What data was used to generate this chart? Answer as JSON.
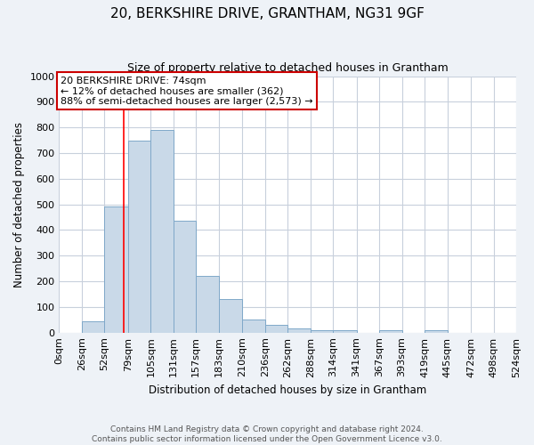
{
  "title": "20, BERKSHIRE DRIVE, GRANTHAM, NG31 9GF",
  "subtitle": "Size of property relative to detached houses in Grantham",
  "xlabel": "Distribution of detached houses by size in Grantham",
  "ylabel": "Number of detached properties",
  "bin_labels": [
    "0sqm",
    "26sqm",
    "52sqm",
    "79sqm",
    "105sqm",
    "131sqm",
    "157sqm",
    "183sqm",
    "210sqm",
    "236sqm",
    "262sqm",
    "288sqm",
    "314sqm",
    "341sqm",
    "367sqm",
    "393sqm",
    "419sqm",
    "445sqm",
    "472sqm",
    "498sqm",
    "524sqm"
  ],
  "bin_edges": [
    0,
    26,
    52,
    79,
    105,
    131,
    157,
    183,
    210,
    236,
    262,
    288,
    314,
    341,
    367,
    393,
    419,
    445,
    472,
    498,
    524
  ],
  "bar_heights": [
    0,
    45,
    490,
    750,
    790,
    435,
    220,
    130,
    50,
    30,
    15,
    10,
    10,
    0,
    10,
    0,
    10,
    0,
    0,
    0
  ],
  "bar_color": "#c9d9e8",
  "bar_edge_color": "#7fa8c9",
  "grid_color": "#c8d0dc",
  "property_line_x": 74,
  "property_line_color": "red",
  "annotation_text": "20 BERKSHIRE DRIVE: 74sqm\n← 12% of detached houses are smaller (362)\n88% of semi-detached houses are larger (2,573) →",
  "annotation_box_color": "white",
  "annotation_box_edge_color": "#cc0000",
  "ylim": [
    0,
    1000
  ],
  "yticks": [
    0,
    100,
    200,
    300,
    400,
    500,
    600,
    700,
    800,
    900,
    1000
  ],
  "footer_line1": "Contains HM Land Registry data © Crown copyright and database right 2024.",
  "footer_line2": "Contains public sector information licensed under the Open Government Licence v3.0.",
  "background_color": "#eef2f7",
  "plot_background_color": "white"
}
